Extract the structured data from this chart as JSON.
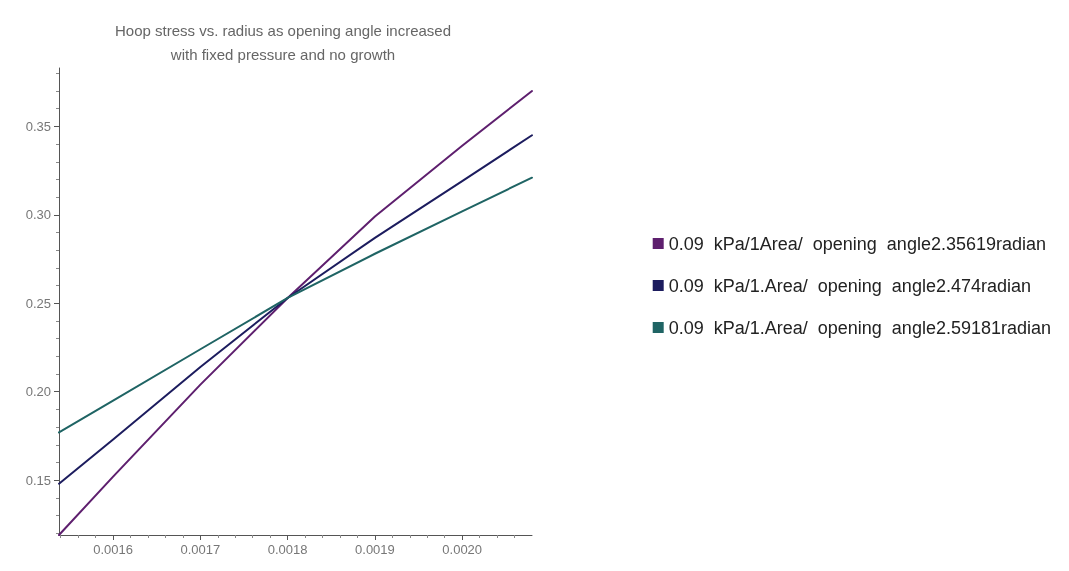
{
  "chart_data": {
    "type": "line",
    "title": "Hoop stress vs. radius as opening angle increased\nwith fixed pressure and no growth",
    "x": [
      0.001538,
      0.0016,
      0.0017,
      0.0018,
      0.0019,
      0.002,
      0.00208
    ],
    "series": [
      {
        "name": "0.09  kPa/1Area/  opening  angle2.35619radian",
        "color": "#5e1f6e",
        "values": [
          0.119,
          0.152,
          0.204,
          0.253,
          0.299,
          0.339,
          0.37
        ]
      },
      {
        "name": "0.09  kPa/1.Area/  opening  angle2.474radian",
        "color": "#1c1c5e",
        "values": [
          0.148,
          0.173,
          0.214,
          0.253,
          0.287,
          0.319,
          0.345
        ]
      },
      {
        "name": "0.09  kPa/1.Area/  opening  angle2.59181radian",
        "color": "#1f6464",
        "values": [
          0.177,
          0.195,
          0.224,
          0.253,
          0.278,
          0.302,
          0.321
        ]
      }
    ],
    "xlim": [
      0.001538,
      0.00208
    ],
    "xticks": [
      0.0016,
      0.0017,
      0.0018,
      0.0019,
      {
        "value": 0.002,
        "label": "0.0020"
      }
    ],
    "ylim": [
      0.119,
      0.383
    ],
    "yticks": [
      0.15,
      {
        "value": 0.2,
        "label": "0.20"
      },
      0.25,
      {
        "value": 0.3,
        "label": "0.30"
      },
      0.35
    ],
    "grid": false,
    "legend": "right",
    "marker": "none",
    "line_style": "solid"
  }
}
